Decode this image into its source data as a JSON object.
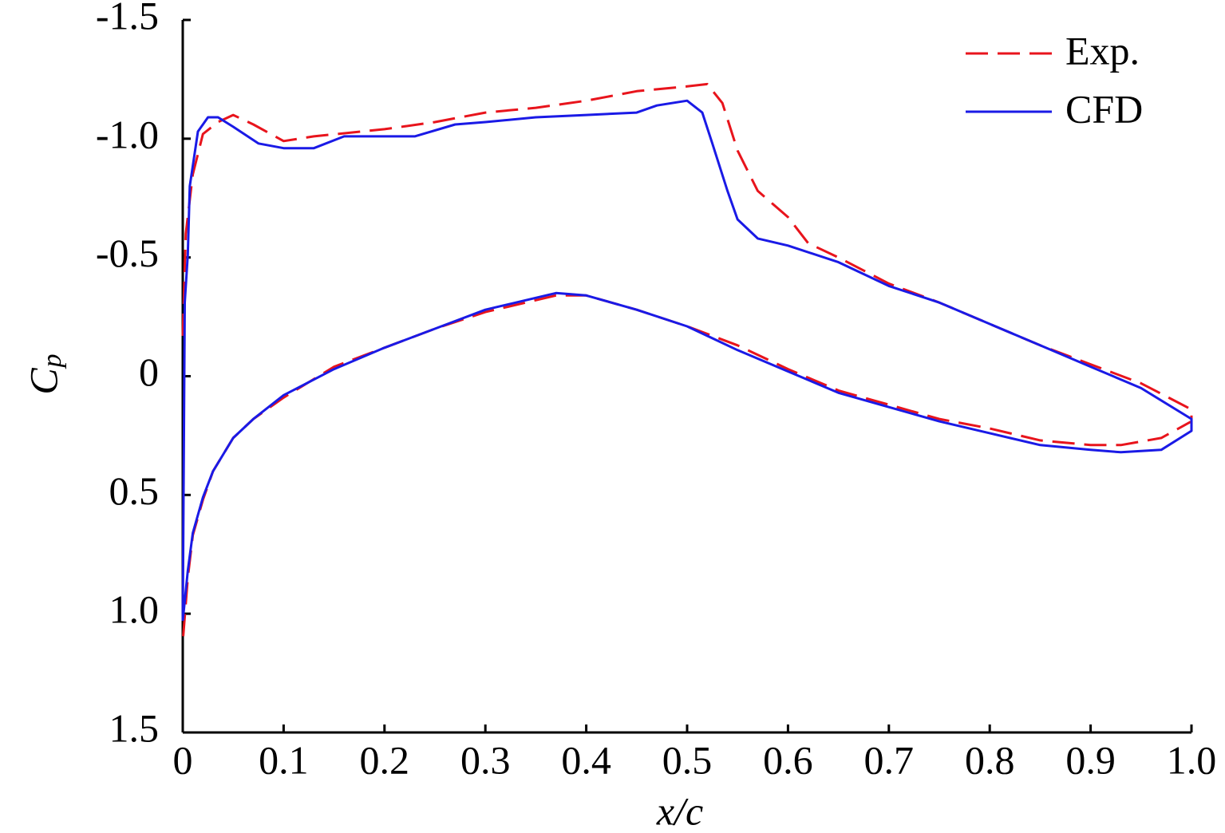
{
  "chart_data": {
    "type": "line",
    "xlabel": "x/c",
    "ylabel": "C",
    "ylabel_sub": "p",
    "xlim": [
      0,
      1
    ],
    "ylim": [
      -1.5,
      1.5
    ],
    "y_inverted": true,
    "xticks": [
      0,
      0.1,
      0.2,
      0.3,
      0.4,
      0.5,
      0.6,
      0.7,
      0.8,
      0.9,
      {
        "value": 1,
        "label": "1.0"
      }
    ],
    "yticks": [
      -1.5,
      {
        "value": -1,
        "label": "-1.0"
      },
      -0.5,
      0,
      0.5,
      {
        "value": 1,
        "label": "1.0"
      },
      1.5
    ],
    "legend": "top-right",
    "series": [
      {
        "name": "Exp.",
        "color": "#e8141c",
        "dashed": true,
        "x": [
          0,
          0.003,
          0.01,
          0.02,
          0.035,
          0.05,
          0.07,
          0.1,
          0.13,
          0.2,
          0.25,
          0.3,
          0.35,
          0.4,
          0.45,
          0.5,
          0.52,
          0.535,
          0.55,
          0.57,
          0.6,
          0.62,
          0.65,
          0.7,
          0.75,
          0.8,
          0.85,
          0.9,
          0.95,
          1.0,
          1.0,
          0.97,
          0.93,
          0.9,
          0.85,
          0.8,
          0.75,
          0.7,
          0.65,
          0.6,
          0.55,
          0.5,
          0.45,
          0.4,
          0.37,
          0.3,
          0.25,
          0.2,
          0.15,
          0.1,
          0.07,
          0.05,
          0.03,
          0.02,
          0.01,
          0.005,
          0
        ],
        "values": [
          -0.17,
          -0.6,
          -0.85,
          -1.02,
          -1.07,
          -1.1,
          -1.06,
          -0.99,
          -1.01,
          -1.04,
          -1.07,
          -1.11,
          -1.13,
          -1.16,
          -1.2,
          -1.22,
          -1.23,
          -1.15,
          -0.95,
          -0.78,
          -0.67,
          -0.56,
          -0.5,
          -0.39,
          -0.31,
          -0.22,
          -0.13,
          -0.05,
          0.03,
          0.14,
          0.19,
          0.26,
          0.29,
          0.29,
          0.27,
          0.22,
          0.18,
          0.12,
          0.06,
          -0.03,
          -0.13,
          -0.21,
          -0.28,
          -0.34,
          -0.34,
          -0.27,
          -0.2,
          -0.12,
          -0.04,
          0.09,
          0.18,
          0.26,
          0.4,
          0.52,
          0.67,
          0.85,
          1.12
        ]
      },
      {
        "name": "CFD",
        "color": "#1a1ae6",
        "dashed": false,
        "x": [
          0,
          0.002,
          0.005,
          0.007,
          0.015,
          0.025,
          0.035,
          0.05,
          0.075,
          0.1,
          0.13,
          0.16,
          0.2,
          0.23,
          0.27,
          0.3,
          0.35,
          0.4,
          0.45,
          0.47,
          0.5,
          0.515,
          0.525,
          0.54,
          0.55,
          0.57,
          0.6,
          0.65,
          0.7,
          0.75,
          0.8,
          0.85,
          0.9,
          0.95,
          1.0,
          1.0,
          0.97,
          0.93,
          0.9,
          0.85,
          0.8,
          0.75,
          0.7,
          0.65,
          0.6,
          0.55,
          0.5,
          0.45,
          0.4,
          0.37,
          0.3,
          0.25,
          0.2,
          0.15,
          0.1,
          0.07,
          0.05,
          0.03,
          0.02,
          0.01,
          0.005,
          0
        ],
        "values": [
          1.03,
          -0.31,
          -0.51,
          -0.8,
          -1.03,
          -1.09,
          -1.09,
          -1.05,
          -0.98,
          -0.96,
          -0.96,
          -1.01,
          -1.01,
          -1.01,
          -1.06,
          -1.07,
          -1.09,
          -1.1,
          -1.11,
          -1.14,
          -1.16,
          -1.11,
          -0.98,
          -0.78,
          -0.66,
          -0.58,
          -0.55,
          -0.48,
          -0.38,
          -0.31,
          -0.22,
          -0.13,
          -0.04,
          0.05,
          0.18,
          0.23,
          0.31,
          0.32,
          0.31,
          0.29,
          0.24,
          0.19,
          0.13,
          0.07,
          -0.02,
          -0.11,
          -0.21,
          -0.28,
          -0.34,
          -0.35,
          -0.28,
          -0.2,
          -0.12,
          -0.03,
          0.08,
          0.18,
          0.26,
          0.4,
          0.51,
          0.66,
          0.82,
          1.03
        ]
      }
    ]
  }
}
